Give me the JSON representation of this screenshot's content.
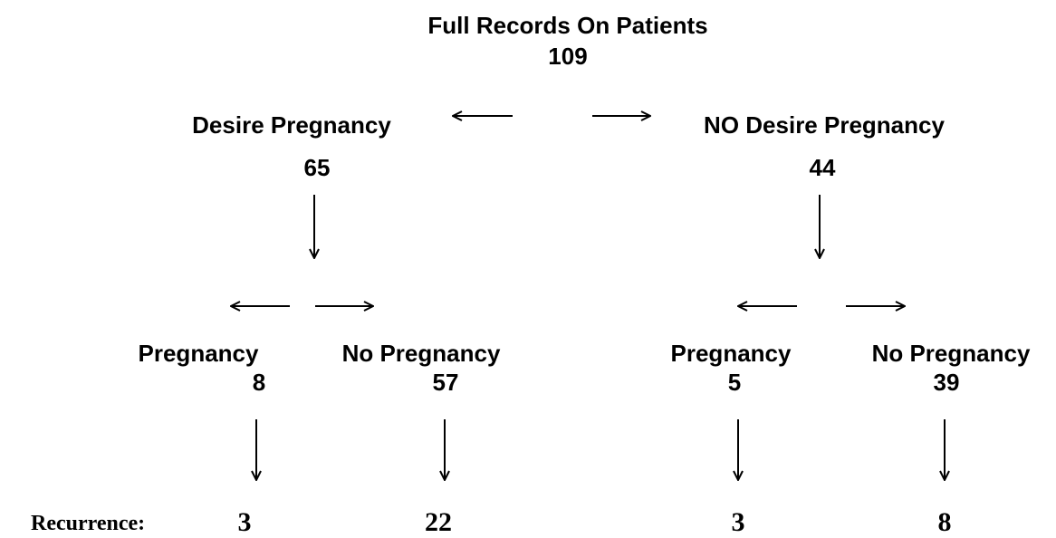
{
  "root": {
    "label": "Full Records On Patients",
    "count": "109"
  },
  "branches": [
    {
      "label": "Desire Pregnancy",
      "count": "65",
      "children": [
        {
          "label": "Pregnancy",
          "count": "8",
          "recurrence": "3"
        },
        {
          "label": "No Pregnancy",
          "count": "57",
          "recurrence": "22"
        }
      ]
    },
    {
      "label": "NO Desire Pregnancy",
      "count": "44",
      "children": [
        {
          "label": "Pregnancy",
          "count": "5",
          "recurrence": "3"
        },
        {
          "label": "No Pregnancy",
          "count": "39",
          "recurrence": "8"
        }
      ]
    }
  ],
  "recurrence_label": "Recurrence:"
}
